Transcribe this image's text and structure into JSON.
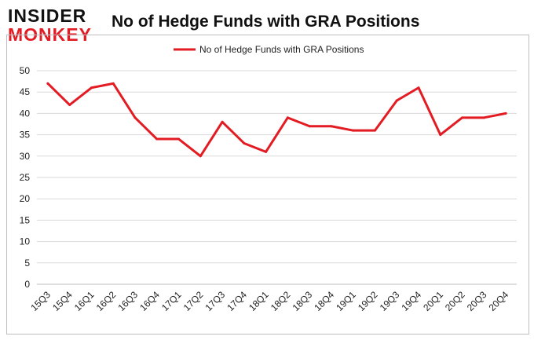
{
  "logo": {
    "line1": "INSIDER",
    "line2": "MONKEY"
  },
  "colors": {
    "series": "#e31b23",
    "grid": "#d9d9d9",
    "axis": "#bfbfbf",
    "brand_red": "#e31b23"
  },
  "chart_data": {
    "type": "line",
    "title": "No of Hedge Funds with GRA Positions",
    "xlabel": "",
    "ylabel": "",
    "ylim": [
      0,
      50
    ],
    "yticks": [
      0,
      5,
      10,
      15,
      20,
      25,
      30,
      35,
      40,
      45,
      50
    ],
    "grid": "horizontal",
    "legend": "top-center",
    "categories": [
      "15Q3",
      "15Q4",
      "16Q1",
      "16Q2",
      "16Q3",
      "16Q4",
      "17Q1",
      "17Q2",
      "17Q3",
      "17Q4",
      "18Q1",
      "18Q2",
      "18Q3",
      "18Q4",
      "19Q1",
      "19Q2",
      "19Q3",
      "19Q4",
      "20Q1",
      "20Q2",
      "20Q3",
      "20Q4"
    ],
    "series": [
      {
        "name": "No of Hedge Funds with GRA Positions",
        "values": [
          47,
          42,
          46,
          47,
          39,
          34,
          34,
          30,
          38,
          33,
          31,
          39,
          37,
          37,
          36,
          36,
          43,
          46,
          35,
          39,
          39,
          40
        ]
      }
    ]
  }
}
